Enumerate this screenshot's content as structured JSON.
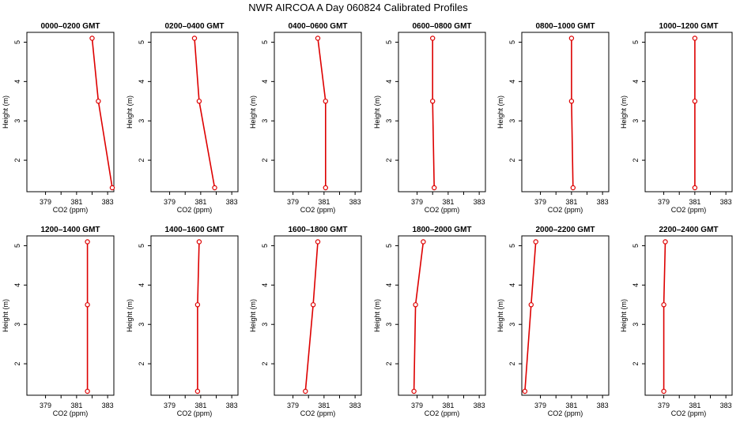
{
  "figure": {
    "title": "NWR AIRCOA A  Day 060824  Calibrated Profiles"
  },
  "colors": {
    "series": "#dd0000",
    "axis": "#000000",
    "background": "#ffffff"
  },
  "chart_data": [
    {
      "type": "line",
      "title": "0000–0200 GMT",
      "xlabel": "CO2 (ppm)",
      "ylabel": "Height (m)",
      "xlim": [
        377.8,
        383.4
      ],
      "ylim": [
        1.2,
        5.25
      ],
      "xticks": [
        379,
        381,
        383
      ],
      "xticks_minor": [
        380,
        382
      ],
      "yticks": [
        2,
        3,
        4,
        5
      ],
      "x": [
        383.3,
        382.4,
        382.0
      ],
      "y": [
        1.3,
        3.5,
        5.1
      ]
    },
    {
      "type": "line",
      "title": "0200–0400 GMT",
      "xlabel": "CO2 (ppm)",
      "ylabel": "Height (m)",
      "xlim": [
        377.8,
        383.4
      ],
      "ylim": [
        1.2,
        5.25
      ],
      "xticks": [
        379,
        381,
        383
      ],
      "xticks_minor": [
        380,
        382
      ],
      "yticks": [
        2,
        3,
        4,
        5
      ],
      "x": [
        381.9,
        380.9,
        380.6
      ],
      "y": [
        1.3,
        3.5,
        5.1
      ]
    },
    {
      "type": "line",
      "title": "0400–0600 GMT",
      "xlabel": "CO2 (ppm)",
      "ylabel": "Height (m)",
      "xlim": [
        377.8,
        383.4
      ],
      "ylim": [
        1.2,
        5.25
      ],
      "xticks": [
        379,
        381,
        383
      ],
      "xticks_minor": [
        380,
        382
      ],
      "yticks": [
        2,
        3,
        4,
        5
      ],
      "x": [
        381.1,
        381.1,
        380.6
      ],
      "y": [
        1.3,
        3.5,
        5.1
      ]
    },
    {
      "type": "line",
      "title": "0600–0800 GMT",
      "xlabel": "CO2 (ppm)",
      "ylabel": "Height (m)",
      "xlim": [
        377.8,
        383.4
      ],
      "ylim": [
        1.2,
        5.25
      ],
      "xticks": [
        379,
        381,
        383
      ],
      "xticks_minor": [
        380,
        382
      ],
      "yticks": [
        2,
        3,
        4,
        5
      ],
      "x": [
        380.1,
        380.0,
        380.0
      ],
      "y": [
        1.3,
        3.5,
        5.1
      ]
    },
    {
      "type": "line",
      "title": "0800–1000 GMT",
      "xlabel": "CO2 (ppm)",
      "ylabel": "Height (m)",
      "xlim": [
        377.8,
        383.4
      ],
      "ylim": [
        1.2,
        5.25
      ],
      "xticks": [
        379,
        381,
        383
      ],
      "xticks_minor": [
        380,
        382
      ],
      "yticks": [
        2,
        3,
        4,
        5
      ],
      "x": [
        381.1,
        381.0,
        381.0
      ],
      "y": [
        1.3,
        3.5,
        5.1
      ]
    },
    {
      "type": "line",
      "title": "1000–1200 GMT",
      "xlabel": "CO2 (ppm)",
      "ylabel": "Height (m)",
      "xlim": [
        377.8,
        383.4
      ],
      "ylim": [
        1.2,
        5.25
      ],
      "xticks": [
        379,
        381,
        383
      ],
      "xticks_minor": [
        380,
        382
      ],
      "yticks": [
        2,
        3,
        4,
        5
      ],
      "x": [
        381.0,
        381.0,
        381.0
      ],
      "y": [
        1.3,
        3.5,
        5.1
      ]
    },
    {
      "type": "line",
      "title": "1200–1400 GMT",
      "xlabel": "CO2 (ppm)",
      "ylabel": "Height (m)",
      "xlim": [
        377.8,
        383.4
      ],
      "ylim": [
        1.2,
        5.25
      ],
      "xticks": [
        379,
        381,
        383
      ],
      "xticks_minor": [
        380,
        382
      ],
      "yticks": [
        2,
        3,
        4,
        5
      ],
      "x": [
        381.7,
        381.7,
        381.7
      ],
      "y": [
        1.3,
        3.5,
        5.1
      ]
    },
    {
      "type": "line",
      "title": "1400–1600 GMT",
      "xlabel": "CO2 (ppm)",
      "ylabel": "Height (m)",
      "xlim": [
        377.8,
        383.4
      ],
      "ylim": [
        1.2,
        5.25
      ],
      "xticks": [
        379,
        381,
        383
      ],
      "xticks_minor": [
        380,
        382
      ],
      "yticks": [
        2,
        3,
        4,
        5
      ],
      "x": [
        380.8,
        380.8,
        380.9
      ],
      "y": [
        1.3,
        3.5,
        5.1
      ]
    },
    {
      "type": "line",
      "title": "1600–1800 GMT",
      "xlabel": "CO2 (ppm)",
      "ylabel": "Height (m)",
      "xlim": [
        377.8,
        383.4
      ],
      "ylim": [
        1.2,
        5.25
      ],
      "xticks": [
        379,
        381,
        383
      ],
      "xticks_minor": [
        380,
        382
      ],
      "yticks": [
        2,
        3,
        4,
        5
      ],
      "x": [
        379.8,
        380.3,
        380.6
      ],
      "y": [
        1.3,
        3.5,
        5.1
      ]
    },
    {
      "type": "line",
      "title": "1800–2000 GMT",
      "xlabel": "CO2 (ppm)",
      "ylabel": "Height (m)",
      "xlim": [
        377.8,
        383.4
      ],
      "ylim": [
        1.2,
        5.25
      ],
      "xticks": [
        379,
        381,
        383
      ],
      "xticks_minor": [
        380,
        382
      ],
      "yticks": [
        2,
        3,
        4,
        5
      ],
      "x": [
        378.8,
        378.9,
        379.4
      ],
      "y": [
        1.3,
        3.5,
        5.1
      ]
    },
    {
      "type": "line",
      "title": "2000–2200 GMT",
      "xlabel": "CO2 (ppm)",
      "ylabel": "Height (m)",
      "xlim": [
        377.8,
        383.4
      ],
      "ylim": [
        1.2,
        5.25
      ],
      "xticks": [
        379,
        381,
        383
      ],
      "xticks_minor": [
        380,
        382
      ],
      "yticks": [
        2,
        3,
        4,
        5
      ],
      "x": [
        378.0,
        378.4,
        378.7
      ],
      "y": [
        1.3,
        3.5,
        5.1
      ]
    },
    {
      "type": "line",
      "title": "2200–2400 GMT",
      "xlabel": "CO2 (ppm)",
      "ylabel": "Height (m)",
      "xlim": [
        377.8,
        383.4
      ],
      "ylim": [
        1.2,
        5.25
      ],
      "xticks": [
        379,
        381,
        383
      ],
      "xticks_minor": [
        380,
        382
      ],
      "yticks": [
        2,
        3,
        4,
        5
      ],
      "x": [
        379.0,
        379.0,
        379.1
      ],
      "y": [
        1.3,
        3.5,
        5.1
      ]
    }
  ]
}
